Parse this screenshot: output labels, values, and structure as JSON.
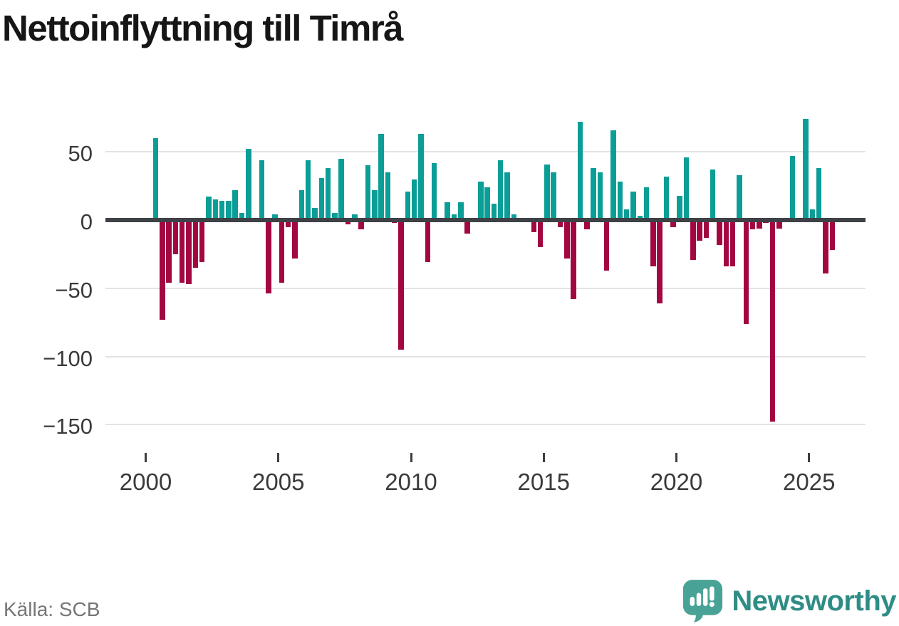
{
  "title": "Nettoinflyttning till Timrå",
  "source": "Källa: SCB",
  "branding": {
    "name": "Newsworthy",
    "icon": "newsworthy-bubble-chart-icon"
  },
  "colors": {
    "positive": "#0B9E97",
    "negative": "#A30742",
    "zero_line": "#3E4145",
    "gridline": "#E3E3E3",
    "axis_text": "#3A3A3A",
    "title_text": "#161616",
    "source_text": "#767676",
    "brand_icon": "#48A396",
    "brand_text": "#2F8D86"
  },
  "chart_data": {
    "type": "bar",
    "title": "Nettoinflyttning till Timrå",
    "granularity": "quarterly",
    "legend": "none",
    "grid": "horizontal",
    "ylim": [
      -163,
      80
    ],
    "xlim_years": [
      1998.5,
      2027.1
    ],
    "yticks": [
      {
        "label": "50",
        "v": 50
      },
      {
        "label": "0",
        "v": 0
      },
      {
        "label": "−50",
        "v": -50
      },
      {
        "label": "−100",
        "v": -100
      },
      {
        "label": "−150",
        "v": -150
      }
    ],
    "xticks": [
      {
        "label": "2000",
        "t": 2000
      },
      {
        "label": "2005",
        "t": 2005
      },
      {
        "label": "2010",
        "t": 2010
      },
      {
        "label": "2015",
        "t": 2015
      },
      {
        "label": "2020",
        "t": 2020
      },
      {
        "label": "2025",
        "t": 2025
      }
    ],
    "series_by_year": [
      {
        "year": 2000,
        "q": [
          null,
          60,
          -73,
          -46
        ]
      },
      {
        "year": 2001,
        "q": [
          -25,
          -46,
          -47,
          -35
        ]
      },
      {
        "year": 2002,
        "q": [
          -31,
          17,
          15,
          14
        ]
      },
      {
        "year": 2003,
        "q": [
          14,
          22,
          5,
          52
        ]
      },
      {
        "year": 2004,
        "q": [
          null,
          44,
          -54,
          4
        ]
      },
      {
        "year": 2005,
        "q": [
          -46,
          -5,
          -28,
          22
        ]
      },
      {
        "year": 2006,
        "q": [
          44,
          9,
          31,
          38
        ]
      },
      {
        "year": 2007,
        "q": [
          5,
          45,
          -3,
          4
        ]
      },
      {
        "year": 2008,
        "q": [
          -7,
          40,
          22,
          63
        ]
      },
      {
        "year": 2009,
        "q": [
          35,
          -2,
          -95,
          21
        ]
      },
      {
        "year": 2010,
        "q": [
          30,
          63,
          -31,
          42
        ]
      },
      {
        "year": 2011,
        "q": [
          null,
          13,
          4,
          13
        ]
      },
      {
        "year": 2012,
        "q": [
          -10,
          null,
          28,
          24
        ]
      },
      {
        "year": 2013,
        "q": [
          12,
          44,
          35,
          4
        ]
      },
      {
        "year": 2014,
        "q": [
          null,
          null,
          -9,
          -20
        ]
      },
      {
        "year": 2015,
        "q": [
          41,
          35,
          -5,
          -28
        ]
      },
      {
        "year": 2016,
        "q": [
          -58,
          72,
          -7,
          38
        ]
      },
      {
        "year": 2017,
        "q": [
          35,
          -37,
          66,
          28
        ]
      },
      {
        "year": 2018,
        "q": [
          8,
          21,
          3,
          24
        ]
      },
      {
        "year": 2019,
        "q": [
          -34,
          -61,
          32,
          -5
        ]
      },
      {
        "year": 2020,
        "q": [
          18,
          46,
          -29,
          -15
        ]
      },
      {
        "year": 2021,
        "q": [
          -13,
          37,
          -18,
          -34
        ]
      },
      {
        "year": 2022,
        "q": [
          -34,
          33,
          -76,
          -7
        ]
      },
      {
        "year": 2023,
        "q": [
          -6,
          -2,
          -148,
          -6
        ]
      },
      {
        "year": 2024,
        "q": [
          null,
          47,
          null,
          74
        ]
      },
      {
        "year": 2025,
        "q": [
          8,
          38,
          -39,
          -22
        ]
      }
    ]
  }
}
